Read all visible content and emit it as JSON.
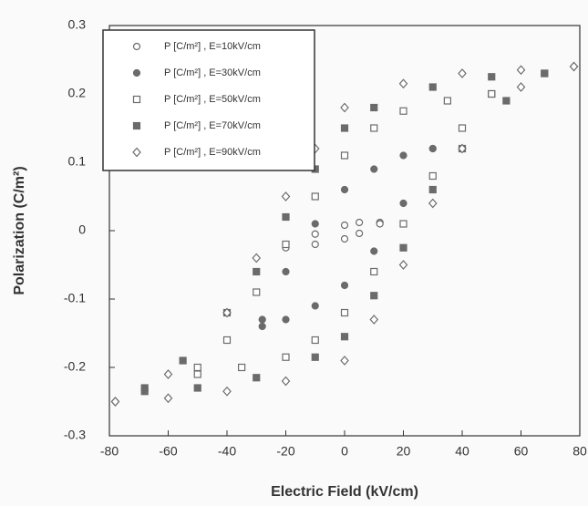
{
  "chart_data": {
    "type": "scatter",
    "xlabel": "Electric Field (kV/cm)",
    "ylabel": "Polarization (C/m²)",
    "xlim": [
      -80,
      80
    ],
    "xticks": [
      -80,
      -60,
      -40,
      -20,
      0,
      20,
      40,
      60,
      80
    ],
    "ylim": [
      -0.3,
      0.3
    ],
    "yticks": [
      -0.3,
      -0.2,
      -0.1,
      0,
      0.1,
      0.2,
      0.3
    ],
    "legend": "top-left",
    "series": [
      {
        "name": "P [C/m²] , E=10kV/cm",
        "color": "#6b6b6b",
        "marker": "circle-open",
        "x": [
          12,
          5,
          0,
          -10,
          -20,
          -20,
          -10,
          0,
          5,
          12
        ],
        "values": [
          0.012,
          0.012,
          0.008,
          -0.005,
          -0.02,
          -0.025,
          -0.02,
          -0.012,
          -0.004,
          0.01
        ]
      },
      {
        "name": "P [C/m²] , E=30kV/cm",
        "color": "#6b6b6b",
        "marker": "circle-filled",
        "x": [
          30,
          20,
          10,
          0,
          -10,
          -20,
          -28,
          -28,
          -20,
          -10,
          0,
          10,
          20,
          30
        ],
        "values": [
          0.12,
          0.11,
          0.09,
          0.06,
          0.01,
          -0.06,
          -0.13,
          -0.14,
          -0.13,
          -0.11,
          -0.08,
          -0.03,
          0.04,
          0.12
        ]
      },
      {
        "name": "P [C/m²] , E=50kV/cm",
        "color": "#6b6b6b",
        "marker": "square-open",
        "x": [
          50,
          35,
          20,
          10,
          0,
          -10,
          -20,
          -30,
          -40,
          -50,
          -50,
          -35,
          -20,
          -10,
          0,
          10,
          20,
          30,
          40,
          50
        ],
        "values": [
          0.2,
          0.19,
          0.175,
          0.15,
          0.11,
          0.05,
          -0.02,
          -0.09,
          -0.16,
          -0.2,
          -0.21,
          -0.2,
          -0.185,
          -0.16,
          -0.12,
          -0.06,
          0.01,
          0.08,
          0.15,
          0.2
        ]
      },
      {
        "name": "P [C/m²] , E=70kV/cm",
        "color": "#6b6b6b",
        "marker": "square-filled",
        "x": [
          68,
          50,
          30,
          10,
          0,
          -10,
          -20,
          -30,
          -40,
          -55,
          -68,
          -68,
          -50,
          -30,
          -10,
          0,
          10,
          20,
          30,
          40,
          55,
          68
        ],
        "values": [
          0.23,
          0.225,
          0.21,
          0.18,
          0.15,
          0.09,
          0.02,
          -0.06,
          -0.12,
          -0.19,
          -0.23,
          -0.235,
          -0.23,
          -0.215,
          -0.185,
          -0.155,
          -0.095,
          -0.025,
          0.06,
          0.12,
          0.19,
          0.23
        ]
      },
      {
        "name": "P [C/m²] , E=90kV/cm",
        "color": "#6b6b6b",
        "marker": "diamond-open",
        "x": [
          78,
          60,
          40,
          20,
          0,
          -10,
          -20,
          -30,
          -40,
          -60,
          -78,
          -78,
          -60,
          -40,
          -20,
          0,
          10,
          20,
          30,
          40,
          60,
          78
        ],
        "values": [
          0.24,
          0.235,
          0.23,
          0.215,
          0.18,
          0.12,
          0.05,
          -0.04,
          -0.12,
          -0.21,
          -0.25,
          -0.25,
          -0.245,
          -0.235,
          -0.22,
          -0.19,
          -0.13,
          -0.05,
          0.04,
          0.12,
          0.21,
          0.24
        ]
      }
    ]
  }
}
